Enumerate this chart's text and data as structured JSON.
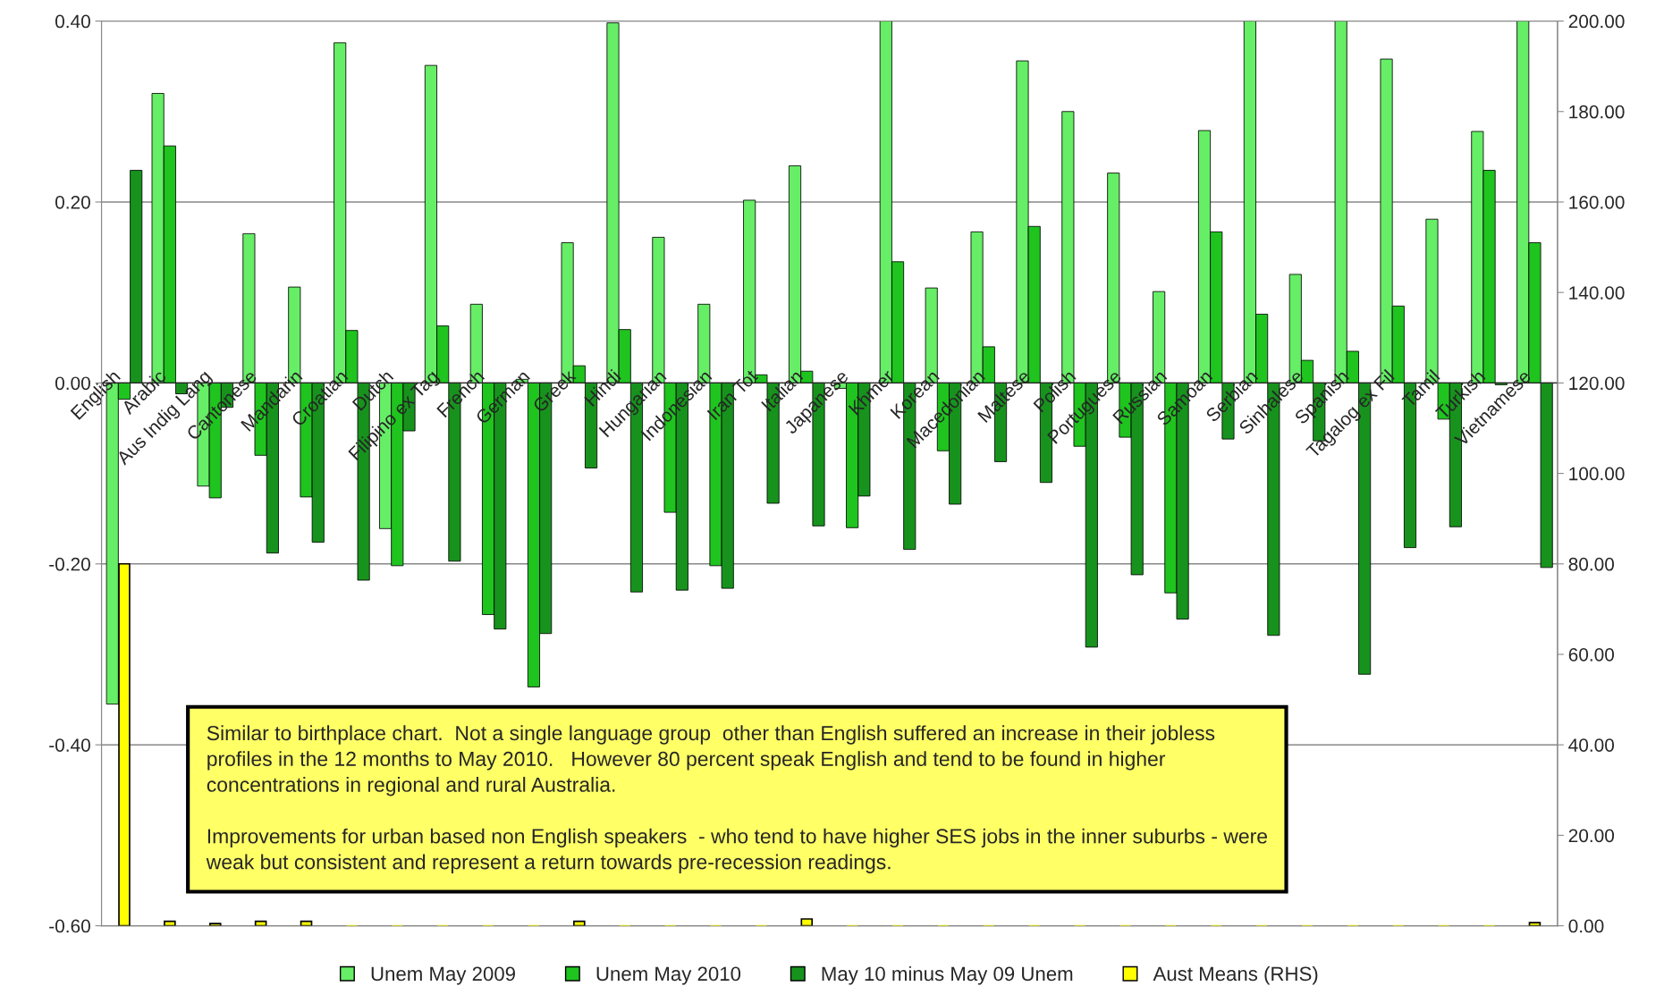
{
  "chart_data": {
    "type": "bar",
    "categories": [
      "English",
      "Arabic",
      "Aus Indig Lang",
      "Cantonese",
      "Mandarin",
      "Croatian",
      "Dutch",
      "Filipino ex Tag",
      "French",
      "German",
      "Greek",
      "Hindi",
      "Hungarian",
      "Indonesian",
      "Iran Tot",
      "Italian",
      "Japanese",
      "Khmer",
      "Korean",
      "Macedonian",
      "Maltese",
      "Polish",
      "Portuguese",
      "Russian",
      "Samoan",
      "Serbian",
      "Sinhalese",
      "Spanish",
      "Tagalog ex Fil",
      "Tamil",
      "Turkish",
      "Vietnamese"
    ],
    "series": [
      {
        "name": "Unem May 2009",
        "color": "#66ee66",
        "values": [
          -0.355,
          0.32,
          -0.114,
          0.165,
          0.106,
          0.376,
          -0.161,
          0.351,
          0.087,
          0.004,
          0.155,
          0.398,
          0.161,
          0.087,
          0.202,
          0.24,
          -0.006,
          0.4,
          0.105,
          0.167,
          0.356,
          0.3,
          0.232,
          0.101,
          0.279,
          0.4,
          0.12,
          0.4,
          0.358,
          0.181,
          0.278,
          0.4
        ]
      },
      {
        "name": "Unem May 2010",
        "color": "#1fc41f",
        "values": [
          -0.018,
          0.262,
          -0.127,
          -0.08,
          -0.126,
          0.058,
          -0.202,
          0.063,
          -0.256,
          -0.336,
          0.019,
          0.059,
          -0.143,
          -0.202,
          0.009,
          0.013,
          -0.16,
          0.134,
          -0.075,
          0.04,
          0.173,
          -0.07,
          -0.06,
          -0.232,
          0.167,
          0.076,
          0.025,
          0.035,
          0.085,
          -0.04,
          0.235,
          0.155
        ]
      },
      {
        "name": "May 10 minus May 09 Unem",
        "color": "#17931d",
        "values": [
          0.235,
          -0.012,
          -0.027,
          -0.188,
          -0.176,
          -0.218,
          -0.053,
          -0.197,
          -0.272,
          -0.277,
          -0.094,
          -0.231,
          -0.229,
          -0.227,
          -0.133,
          -0.158,
          -0.125,
          -0.184,
          -0.134,
          -0.087,
          -0.11,
          -0.292,
          -0.212,
          -0.261,
          -0.062,
          -0.279,
          -0.064,
          -0.322,
          -0.182,
          -0.159,
          -0.002,
          -0.204
        ]
      },
      {
        "name": "Aust Means (RHS)",
        "color": "#ffff00",
        "axis": "y2",
        "values": [
          80,
          1,
          0.5,
          1,
          1,
          0,
          0,
          0,
          0,
          0,
          1,
          0,
          0,
          0,
          0,
          1.5,
          0,
          0,
          0,
          0,
          0,
          0,
          0,
          0,
          0,
          0,
          0,
          0,
          0,
          0,
          0,
          0.7
        ]
      }
    ],
    "ylim": [
      -0.6,
      0.4
    ],
    "yticks": [
      {
        "value": -0.6,
        "label": "-0.60"
      },
      {
        "value": -0.4,
        "label": "-0.40"
      },
      {
        "value": -0.2,
        "label": "-0.20"
      },
      {
        "value": 0,
        "label": "0.00"
      },
      {
        "value": 0.2,
        "label": "0.20"
      },
      {
        "value": 0.4,
        "label": "0.40"
      }
    ],
    "y2lim": [
      0,
      200
    ],
    "y2ticks": [
      {
        "value": 0,
        "label": "0.00"
      },
      {
        "value": 20,
        "label": "20.00"
      },
      {
        "value": 40,
        "label": "40.00"
      },
      {
        "value": 60,
        "label": "60.00"
      },
      {
        "value": 80,
        "label": "80.00"
      },
      {
        "value": 100,
        "label": "100.00"
      },
      {
        "value": 120,
        "label": "120.00"
      },
      {
        "value": 140,
        "label": "140.00"
      },
      {
        "value": 160,
        "label": "160.00"
      },
      {
        "value": 180,
        "label": "180.00"
      },
      {
        "value": 200,
        "label": "200.00"
      }
    ],
    "grid": "y",
    "legend": "bottom",
    "annotations": [
      "Similar to birthplace chart.  Not a single language group  other than English suffered an increase in their jobless\nprofiles in the 12 months to May 2010.   However 80 percent speak English and tend to be found in higher\nconcentrations in regional and rural Australia.\n\nImprovements for urban based non English speakers  - who tend to have higher SES jobs in the inner suburbs - were\nweak but consistent and represent a return towards pre-recession readings."
    ]
  }
}
